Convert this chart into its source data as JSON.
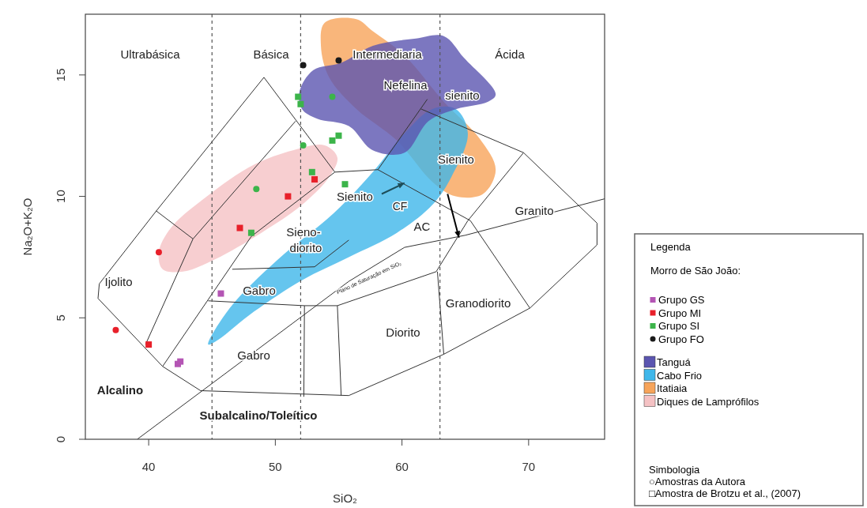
{
  "chart_data": {
    "type": "scatter",
    "xlabel": "SiO₂",
    "ylabel": "Na₂O+K₂O",
    "legend_title": "Legenda",
    "legend": "right",
    "xlim": [
      35,
      76
    ],
    "ylim": [
      0,
      17.5
    ],
    "xticks": [
      40,
      50,
      60,
      70
    ],
    "yticks": [
      0,
      5,
      10,
      15
    ],
    "ref_lines": [
      {
        "axis": "x",
        "value": 45,
        "color": "#555555",
        "line_style": "dashed"
      },
      {
        "axis": "x",
        "value": 52,
        "color": "#555555",
        "line_style": "dashed"
      },
      {
        "axis": "x",
        "value": 63,
        "color": "#555555",
        "line_style": "dashed"
      }
    ],
    "series": [
      {
        "name": "Grupo GS",
        "marker": "square",
        "color": "#b455b4",
        "x": [
          45.7,
          42.3,
          42.5
        ],
        "values": [
          6.0,
          3.1,
          3.2
        ]
      },
      {
        "name": "Grupo MI",
        "marker": "square",
        "color": "#e8202a",
        "x": [
          53.1,
          51.0,
          47.2,
          40.0
        ],
        "values": [
          10.7,
          10.0,
          8.7,
          3.9
        ]
      },
      {
        "marker": "circle",
        "color": "#e8202a",
        "x": [
          40.8,
          37.4
        ],
        "values": [
          7.7,
          4.5
        ]
      },
      {
        "name": "Grupo SI",
        "marker": "square",
        "color": "#3cb44a",
        "x": [
          51.8,
          52.0,
          55.0,
          54.5,
          52.9,
          55.5,
          48.1
        ],
        "values": [
          14.1,
          13.8,
          12.5,
          12.3,
          11.0,
          10.5,
          8.5
        ]
      },
      {
        "marker": "circle",
        "color": "#3cb44a",
        "x": [
          54.5,
          52.2,
          48.5
        ],
        "values": [
          14.1,
          12.1,
          10.3
        ]
      },
      {
        "name": "Grupo FO",
        "marker": "circle",
        "color": "#1a1a1a",
        "x": [
          52.2,
          55.0
        ],
        "values": [
          15.4,
          15.6
        ]
      },
      {
        "name": "Tanguá",
        "type": "area",
        "color": "#5b55b0",
        "x": [
          51.9,
          53.0,
          55.2,
          57.7,
          61.1,
          63.3,
          64.9,
          67.4,
          66.8,
          64.3,
          62.1,
          60.2,
          57.7,
          55.8,
          53.3,
          52.1
        ],
        "values": [
          14.3,
          15.2,
          15.5,
          16.2,
          16.5,
          16.6,
          15.7,
          14.2,
          13.9,
          13.6,
          13.1,
          11.8,
          11.9,
          12.9,
          13.2,
          13.6
        ]
      },
      {
        "name": "Cabo Frio",
        "type": "area",
        "color": "#3fb7ea",
        "x": [
          44.7,
          46.4,
          50.2,
          54.6,
          57.7,
          60.2,
          62.4,
          64.25,
          65.2,
          63.9,
          62.4,
          59.6,
          55.8,
          52.1,
          48.3,
          45.5
        ],
        "values": [
          3.9,
          5.4,
          7.4,
          9.3,
          11.0,
          12.6,
          13.6,
          13.6,
          12.6,
          10.8,
          9.65,
          8.5,
          7.5,
          6.55,
          5.25,
          4.1
        ]
      },
      {
        "name": "Itatiaia",
        "type": "area",
        "color": "#f7a45a",
        "x": [
          53.9,
          56.4,
          57.7,
          60.2,
          63.3,
          66.1,
          67.4,
          66.4,
          64.25,
          62.4,
          59.6,
          56.4,
          54.25,
          53.6
        ],
        "values": [
          17.15,
          17.3,
          16.8,
          15.8,
          13.9,
          12.4,
          11.1,
          10.1,
          10.0,
          10.6,
          12.3,
          13.6,
          14.9,
          16.2
        ]
      },
      {
        "name": "Diques de Lamprófilos",
        "type": "area",
        "color": "#f5c2c4",
        "x": [
          41.1,
          40.8,
          41.75,
          44.6,
          48.3,
          51.4,
          53.9,
          54.9,
          54.25,
          52.1,
          48.9,
          45.2,
          42.7
        ],
        "values": [
          7.0,
          7.7,
          8.7,
          10.0,
          11.3,
          11.9,
          12.1,
          11.6,
          10.8,
          9.65,
          8.5,
          7.4,
          6.9
        ]
      },
      {
        "type": "line",
        "color": "#333333",
        "x": [
          61.5,
          69.6,
          75.4,
          75.4,
          70.1,
          63.3,
          55.8,
          44.1,
          41.1,
          36.0,
          36.1,
          40.6,
          49.1,
          54.7,
          58.1,
          62.0,
          null,
          39.75,
          43.5,
          51.6,
          null,
          40.6,
          43.5,
          null,
          41.1,
          48.1,
          54.7,
          null,
          46.6,
          53.1,
          55.8,
          null,
          44.7,
          52.3,
          54.9,
          62.7,
          65.2,
          null,
          39.1,
          55.8,
          60.2,
          65.0,
          76.0,
          null,
          52.3,
          52.25,
          null,
          54.9,
          55.2,
          null,
          62.8,
          63.3,
          null,
          65.2,
          69.6,
          null,
          58.1,
          65.4,
          70.1
        ],
        "values": [
          13.6,
          11.8,
          8.9,
          8.0,
          5.4,
          3.5,
          1.8,
          2.0,
          3.0,
          5.8,
          6.4,
          9.4,
          14.9,
          11.0,
          11.1,
          14.0,
          null,
          3.9,
          8.25,
          13.1,
          null,
          9.4,
          8.25,
          null,
          3.0,
          8.35,
          11.0,
          null,
          7.0,
          7.1,
          8.2,
          null,
          5.7,
          5.5,
          5.5,
          6.9,
          9.0,
          null,
          0,
          6.5,
          7.9,
          8.4,
          9.9,
          null,
          5.5,
          1.75,
          null,
          5.5,
          1.8,
          null,
          6.9,
          3.5,
          null,
          9.0,
          11.8,
          null,
          11.1,
          9.0,
          5.4
        ]
      }
    ],
    "annotations": [
      "Morro de São João:",
      "Simbologia",
      "○Amostras da Autora",
      "□Amostra de Brotzu et al., (2007)",
      "Ultrabásica",
      "Básica",
      "Intermediaria",
      "Ácida",
      "Nefelina",
      "sienito",
      "Sienito",
      "Sienito",
      "CF",
      "AC",
      "Granito",
      "Sieno-",
      "diorito",
      "Gabro",
      "Ijolito",
      "Granodiorito",
      "Diorito",
      "Gabro",
      "Alcalino",
      "Subalcalino/Toleítico",
      "Plano de Saturação em SiO₂"
    ]
  }
}
